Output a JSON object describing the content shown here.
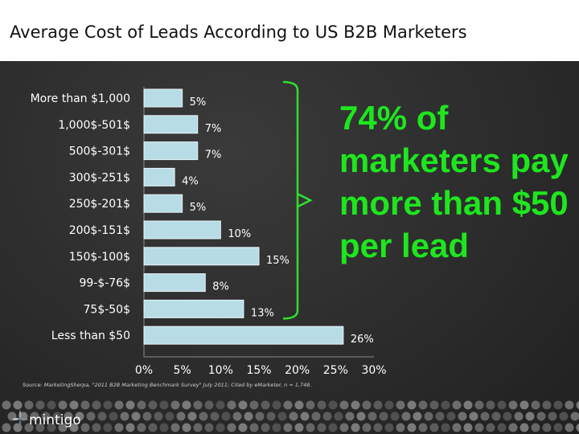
{
  "slide_title": "Average Cost of Leads According to US B2B Marketers",
  "callout": "74% of marketers pay more than $50 per lead",
  "source": "Source: MarketingSherpa, \"2011 B2B Marketing Benchmark Survey\" July 2011; Cited by eMarketer, n = 1,748.",
  "brand": "mintigo",
  "colors": {
    "bar_fill": "#b8dce6",
    "bar_stroke": "#e8f4f8",
    "callout": "#1ee61e",
    "text": "#ffffff",
    "title_bg": "#ffffff"
  },
  "chart_data": {
    "type": "bar",
    "orientation": "horizontal",
    "categories": [
      "More than $1,000",
      "1,000$-501$",
      "500$-301$",
      "300$-251$",
      "250$-201$",
      "200$-151$",
      "150$-100$",
      "99-$-76$",
      "75$-50$",
      "Less than $50"
    ],
    "values": [
      5,
      7,
      7,
      4,
      5,
      10,
      15,
      8,
      13,
      26
    ],
    "value_labels": [
      "5%",
      "7%",
      "7%",
      "4%",
      "5%",
      "10%",
      "15%",
      "8%",
      "13%",
      "26%"
    ],
    "xlim": [
      0,
      30
    ],
    "xticks": [
      0,
      5,
      10,
      15,
      20,
      25,
      30
    ],
    "xtick_labels": [
      "0%",
      "5%",
      "10%",
      "15%",
      "20%",
      "25%",
      "30%"
    ],
    "grid": false,
    "legend": false,
    "xlabel": "",
    "ylabel": ""
  }
}
